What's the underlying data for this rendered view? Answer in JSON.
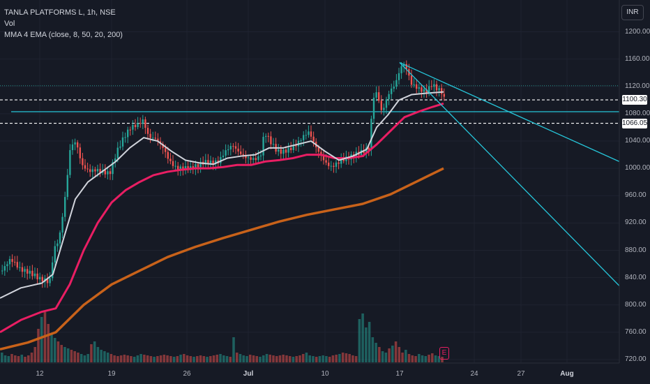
{
  "header": {
    "symbol_line": "TANLA PLATFORMS L, 1h, NSE",
    "volume_label": "Vol",
    "ma_label": "MMA 4 EMA (close, 8, 50, 20, 200)"
  },
  "currency_button": "INR",
  "earnings_marker": "E",
  "colors": {
    "background": "#161a25",
    "up_candle": "#26a69a",
    "down_candle": "#ef5350",
    "ema20": "#d1d4dc",
    "ema50": "#e91e63",
    "ema200": "#c8621a",
    "trendline": "#26c6da"
  },
  "chart_data": {
    "type": "candlestick",
    "ylim": [
      705,
      1222
    ],
    "y_ticks": [
      "1200.00",
      "1160.00",
      "1120.00",
      "1080.00",
      "1040.00",
      "1000.00",
      "960.00",
      "920.00",
      "880.00",
      "840.00",
      "800.00",
      "760.00",
      "720.00"
    ],
    "x_ticks": [
      {
        "label": "12",
        "bold": false
      },
      {
        "label": "19",
        "bold": false
      },
      {
        "label": "26",
        "bold": false
      },
      {
        "label": "Jul",
        "bold": true
      },
      {
        "label": "10",
        "bold": false
      },
      {
        "label": "17",
        "bold": false
      },
      {
        "label": "24",
        "bold": false
      },
      {
        "label": "27",
        "bold": false
      },
      {
        "label": "Aug",
        "bold": true
      }
    ],
    "price_lines": [
      {
        "label": "1100.30",
        "value": 1100.3
      },
      {
        "label": "1066.05",
        "value": 1066.05
      }
    ],
    "horizontal_level": 1083,
    "close_path": [
      [
        0,
        850
      ],
      [
        14,
        866
      ],
      [
        28,
        848
      ],
      [
        42,
        842
      ],
      [
        56,
        834
      ],
      [
        70,
        832
      ],
      [
        76,
        880
      ],
      [
        84,
        900
      ],
      [
        92,
        960
      ],
      [
        100,
        1038
      ],
      [
        108,
        1044
      ],
      [
        116,
        1010
      ],
      [
        126,
        1000
      ],
      [
        136,
        1000
      ],
      [
        146,
        995
      ],
      [
        156,
        990
      ],
      [
        166,
        1020
      ],
      [
        176,
        1040
      ],
      [
        186,
        1055
      ],
      [
        196,
        1060
      ],
      [
        204,
        1068
      ],
      [
        212,
        1045
      ],
      [
        222,
        1045
      ],
      [
        232,
        1035
      ],
      [
        242,
        1015
      ],
      [
        252,
        1005
      ],
      [
        262,
        1005
      ],
      [
        272,
        1003
      ],
      [
        282,
        1005
      ],
      [
        292,
        1008
      ],
      [
        302,
        1005
      ],
      [
        312,
        1005
      ],
      [
        322,
        1020
      ],
      [
        332,
        1030
      ],
      [
        342,
        1020
      ],
      [
        352,
        1015
      ],
      [
        362,
        1015
      ],
      [
        372,
        1020
      ],
      [
        378,
        1058
      ],
      [
        386,
        1045
      ],
      [
        396,
        1030
      ],
      [
        404,
        1028
      ],
      [
        414,
        1030
      ],
      [
        424,
        1035
      ],
      [
        434,
        1045
      ],
      [
        442,
        1050
      ],
      [
        450,
        1030
      ],
      [
        458,
        1015
      ],
      [
        466,
        1003
      ],
      [
        474,
        998
      ],
      [
        482,
        1005
      ],
      [
        490,
        1012
      ],
      [
        500,
        1018
      ],
      [
        510,
        1025
      ],
      [
        520,
        1030
      ],
      [
        528,
        1035
      ],
      [
        534,
        1110
      ],
      [
        540,
        1115
      ],
      [
        546,
        1085
      ],
      [
        552,
        1100
      ],
      [
        558,
        1115
      ],
      [
        564,
        1120
      ],
      [
        570,
        1135
      ],
      [
        576,
        1152
      ],
      [
        582,
        1142
      ],
      [
        588,
        1120
      ],
      [
        594,
        1115
      ],
      [
        602,
        1110
      ],
      [
        610,
        1108
      ],
      [
        618,
        1120
      ],
      [
        626,
        1115
      ],
      [
        632,
        1112
      ],
      [
        636,
        1102
      ]
    ],
    "ema20": [
      [
        0,
        810
      ],
      [
        30,
        825
      ],
      [
        60,
        832
      ],
      [
        76,
        845
      ],
      [
        92,
        900
      ],
      [
        108,
        955
      ],
      [
        126,
        980
      ],
      [
        146,
        995
      ],
      [
        166,
        1010
      ],
      [
        186,
        1030
      ],
      [
        206,
        1045
      ],
      [
        226,
        1040
      ],
      [
        246,
        1025
      ],
      [
        266,
        1012
      ],
      [
        286,
        1008
      ],
      [
        306,
        1006
      ],
      [
        326,
        1015
      ],
      [
        346,
        1018
      ],
      [
        366,
        1020
      ],
      [
        386,
        1030
      ],
      [
        406,
        1030
      ],
      [
        426,
        1035
      ],
      [
        446,
        1040
      ],
      [
        466,
        1025
      ],
      [
        486,
        1012
      ],
      [
        506,
        1018
      ],
      [
        526,
        1028
      ],
      [
        540,
        1060
      ],
      [
        556,
        1078
      ],
      [
        572,
        1100
      ],
      [
        590,
        1108
      ],
      [
        610,
        1110
      ],
      [
        636,
        1112
      ]
    ],
    "ema50": [
      [
        0,
        760
      ],
      [
        30,
        778
      ],
      [
        60,
        790
      ],
      [
        80,
        795
      ],
      [
        100,
        830
      ],
      [
        120,
        880
      ],
      [
        140,
        920
      ],
      [
        160,
        950
      ],
      [
        180,
        968
      ],
      [
        200,
        980
      ],
      [
        220,
        990
      ],
      [
        240,
        995
      ],
      [
        260,
        998
      ],
      [
        280,
        1000
      ],
      [
        300,
        1000
      ],
      [
        320,
        1002
      ],
      [
        340,
        1005
      ],
      [
        360,
        1005
      ],
      [
        380,
        1010
      ],
      [
        400,
        1012
      ],
      [
        420,
        1015
      ],
      [
        440,
        1020
      ],
      [
        460,
        1020
      ],
      [
        480,
        1015
      ],
      [
        500,
        1015
      ],
      [
        520,
        1018
      ],
      [
        540,
        1035
      ],
      [
        560,
        1055
      ],
      [
        580,
        1075
      ],
      [
        600,
        1083
      ],
      [
        620,
        1090
      ],
      [
        636,
        1095
      ]
    ],
    "ema200": [
      [
        0,
        735
      ],
      [
        40,
        745
      ],
      [
        80,
        760
      ],
      [
        120,
        800
      ],
      [
        160,
        830
      ],
      [
        200,
        850
      ],
      [
        240,
        870
      ],
      [
        280,
        885
      ],
      [
        320,
        898
      ],
      [
        360,
        910
      ],
      [
        400,
        922
      ],
      [
        440,
        932
      ],
      [
        480,
        940
      ],
      [
        520,
        948
      ],
      [
        560,
        962
      ],
      [
        600,
        982
      ],
      [
        636,
        1000
      ]
    ],
    "volume": [
      14,
      10,
      9,
      12,
      10,
      9,
      11,
      8,
      10,
      14,
      22,
      48,
      65,
      72,
      55,
      40,
      35,
      30,
      25,
      22,
      20,
      18,
      16,
      14,
      12,
      10,
      12,
      26,
      30,
      22,
      18,
      16,
      14,
      12,
      10,
      9,
      10,
      11,
      10,
      9,
      8,
      10,
      12,
      11,
      10,
      9,
      8,
      9,
      10,
      11,
      10,
      9,
      8,
      9,
      11,
      12,
      10,
      9,
      8,
      9,
      10,
      9,
      8,
      9,
      10,
      11,
      12,
      10,
      9,
      8,
      36,
      14,
      12,
      10,
      9,
      11,
      10,
      9,
      8,
      10,
      12,
      11,
      10,
      9,
      10,
      11,
      10,
      9,
      8,
      9,
      10,
      12,
      14,
      10,
      9,
      8,
      9,
      10,
      9,
      8,
      10,
      11,
      12,
      14,
      13,
      12,
      10,
      9,
      62,
      70,
      50,
      58,
      36,
      28,
      22,
      16,
      14,
      20,
      24,
      30,
      22,
      14,
      18,
      12,
      10,
      9,
      12,
      10,
      9,
      11,
      13,
      10,
      9,
      8
    ]
  }
}
